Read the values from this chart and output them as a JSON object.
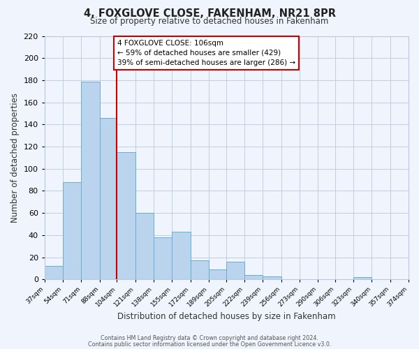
{
  "title": "4, FOXGLOVE CLOSE, FAKENHAM, NR21 8PR",
  "subtitle": "Size of property relative to detached houses in Fakenham",
  "xlabel": "Distribution of detached houses by size in Fakenham",
  "ylabel": "Number of detached properties",
  "bar_values": [
    12,
    88,
    179,
    146,
    115,
    60,
    38,
    43,
    17,
    9,
    16,
    4,
    3,
    0,
    0,
    0,
    0,
    2,
    0,
    0
  ],
  "bar_edges": [
    37,
    54,
    71,
    88,
    104,
    121,
    138,
    155,
    172,
    189,
    205,
    222,
    239,
    256,
    273,
    290,
    306,
    323,
    340,
    357,
    374
  ],
  "tick_labels": [
    "37sqm",
    "54sqm",
    "71sqm",
    "88sqm",
    "104sqm",
    "121sqm",
    "138sqm",
    "155sqm",
    "172sqm",
    "189sqm",
    "205sqm",
    "222sqm",
    "239sqm",
    "256sqm",
    "273sqm",
    "290sqm",
    "306sqm",
    "323sqm",
    "340sqm",
    "357sqm",
    "374sqm"
  ],
  "bar_color": "#bad4ed",
  "bar_edge_color": "#6aacd4",
  "ref_line_x": 104,
  "ref_line_color": "#cc0000",
  "ylim": [
    0,
    220
  ],
  "yticks": [
    0,
    20,
    40,
    60,
    80,
    100,
    120,
    140,
    160,
    180,
    200,
    220
  ],
  "annotation_title": "4 FOXGLOVE CLOSE: 106sqm",
  "annotation_line1": "← 59% of detached houses are smaller (429)",
  "annotation_line2": "39% of semi-detached houses are larger (286) →",
  "footer1": "Contains HM Land Registry data © Crown copyright and database right 2024.",
  "footer2": "Contains public sector information licensed under the Open Government Licence v3.0.",
  "background_color": "#f0f4fc",
  "grid_color": "#b8c8e0",
  "title_color": "#222222",
  "text_color": "#333333"
}
